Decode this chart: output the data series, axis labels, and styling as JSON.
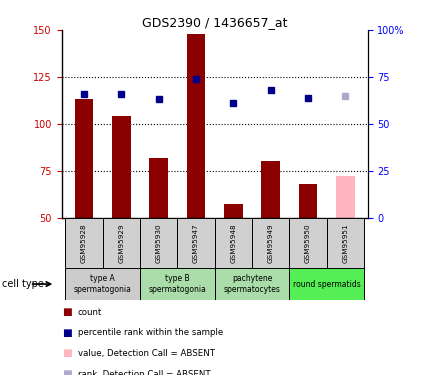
{
  "title": "GDS2390 / 1436657_at",
  "samples": [
    "GSM95928",
    "GSM95929",
    "GSM95930",
    "GSM95947",
    "GSM95948",
    "GSM95949",
    "GSM95950",
    "GSM95951"
  ],
  "bar_values": [
    113,
    104,
    82,
    148,
    57,
    80,
    68,
    72
  ],
  "bar_colors": [
    "#8B0000",
    "#8B0000",
    "#8B0000",
    "#8B0000",
    "#8B0000",
    "#8B0000",
    "#8B0000",
    "#FFB6C1"
  ],
  "rank_values": [
    116,
    116,
    113,
    124,
    111,
    118,
    114,
    115
  ],
  "rank_colors": [
    "#00008B",
    "#00008B",
    "#00008B",
    "#00008B",
    "#00008B",
    "#00008B",
    "#00008B",
    "#AAAACC"
  ],
  "ylim_left": [
    50,
    150
  ],
  "ylim_right": [
    0,
    100
  ],
  "yticks_left": [
    50,
    75,
    100,
    125,
    150
  ],
  "yticks_right": [
    0,
    25,
    50,
    75,
    100
  ],
  "ytick_labels_right": [
    "0",
    "25",
    "50",
    "75",
    "100%"
  ],
  "hlines": [
    75,
    100,
    125
  ],
  "group_ranges": [
    [
      0,
      2
    ],
    [
      2,
      4
    ],
    [
      4,
      6
    ],
    [
      6,
      8
    ]
  ],
  "group_labels": [
    "type A\nspermatogonia",
    "type B\nspermatogonia",
    "pachytene\nspermatocytes",
    "round spermatids"
  ],
  "group_colors": [
    "#cccccc",
    "#aaddaa",
    "#aaddaa",
    "#55ee55"
  ],
  "legend_colors": [
    "#8B0000",
    "#00008B",
    "#FFB6C1",
    "#AAAACC"
  ],
  "legend_labels": [
    "count",
    "percentile rank within the sample",
    "value, Detection Call = ABSENT",
    "rank, Detection Call = ABSENT"
  ],
  "cell_type_label": "cell type",
  "bar_width": 0.5
}
